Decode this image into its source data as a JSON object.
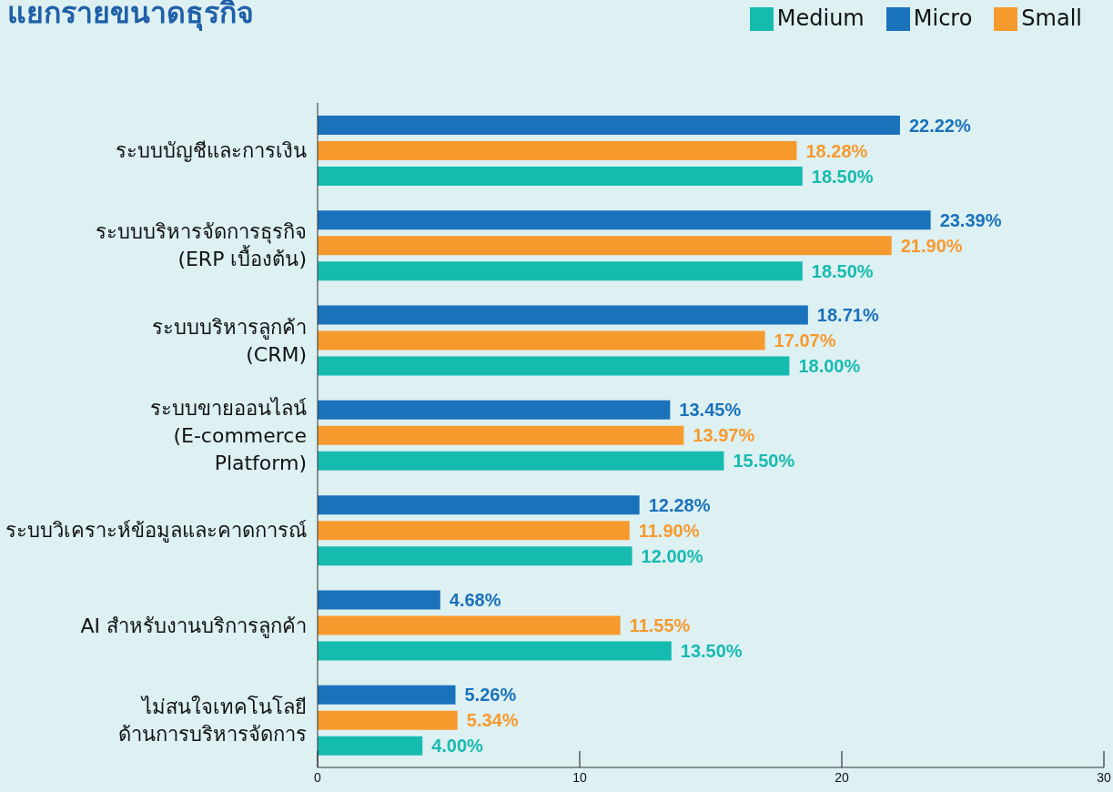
{
  "chart_data": {
    "type": "bar",
    "orientation": "horizontal",
    "title": "แยกรายขนาดธุรกิจ",
    "categories": [
      "ระบบบัญชีและการเงิน",
      "ระบบบริหารจัดการธุรกิจ\n(ERP เบื้องต้น)",
      "ระบบบริหารลูกค้า\n(CRM)",
      "ระบบขายออนไลน์\n(E-commerce\nPlatform)",
      "ระบบวิเคราะห์ข้อมูลและคาดการณ์",
      "AI สำหรับงานบริการลูกค้า",
      "ไม่สนใจเทคโนโลยี\nด้านการบริหารจัดการ"
    ],
    "series": [
      {
        "name": "Micro",
        "color": "#1a72bb",
        "values": [
          22.22,
          23.39,
          18.71,
          13.45,
          12.28,
          4.68,
          5.26
        ],
        "value_labels": [
          "22.22%",
          "23.39%",
          "18.71%",
          "13.45%",
          "12.28%",
          "4.68%",
          "5.26%"
        ]
      },
      {
        "name": "Small",
        "color": "#f79a2e",
        "values": [
          18.28,
          21.9,
          17.07,
          13.97,
          11.9,
          11.55,
          5.34
        ],
        "value_labels": [
          "18.28%",
          "21.90%",
          "17.07%",
          "13.97%",
          "11.90%",
          "11.55%",
          "5.34%"
        ]
      },
      {
        "name": "Medium",
        "color": "#16bbb0",
        "values": [
          18.5,
          18.5,
          18.0,
          15.5,
          12.0,
          13.5,
          4.0
        ],
        "value_labels": [
          "18.50%",
          "18.50%",
          "18.00%",
          "15.50%",
          "12.00%",
          "13.50%",
          "4.00%"
        ]
      }
    ],
    "xlim": [
      0,
      30
    ],
    "xticks": [
      0,
      10,
      20,
      30
    ],
    "legend": "top right",
    "grid": false
  }
}
